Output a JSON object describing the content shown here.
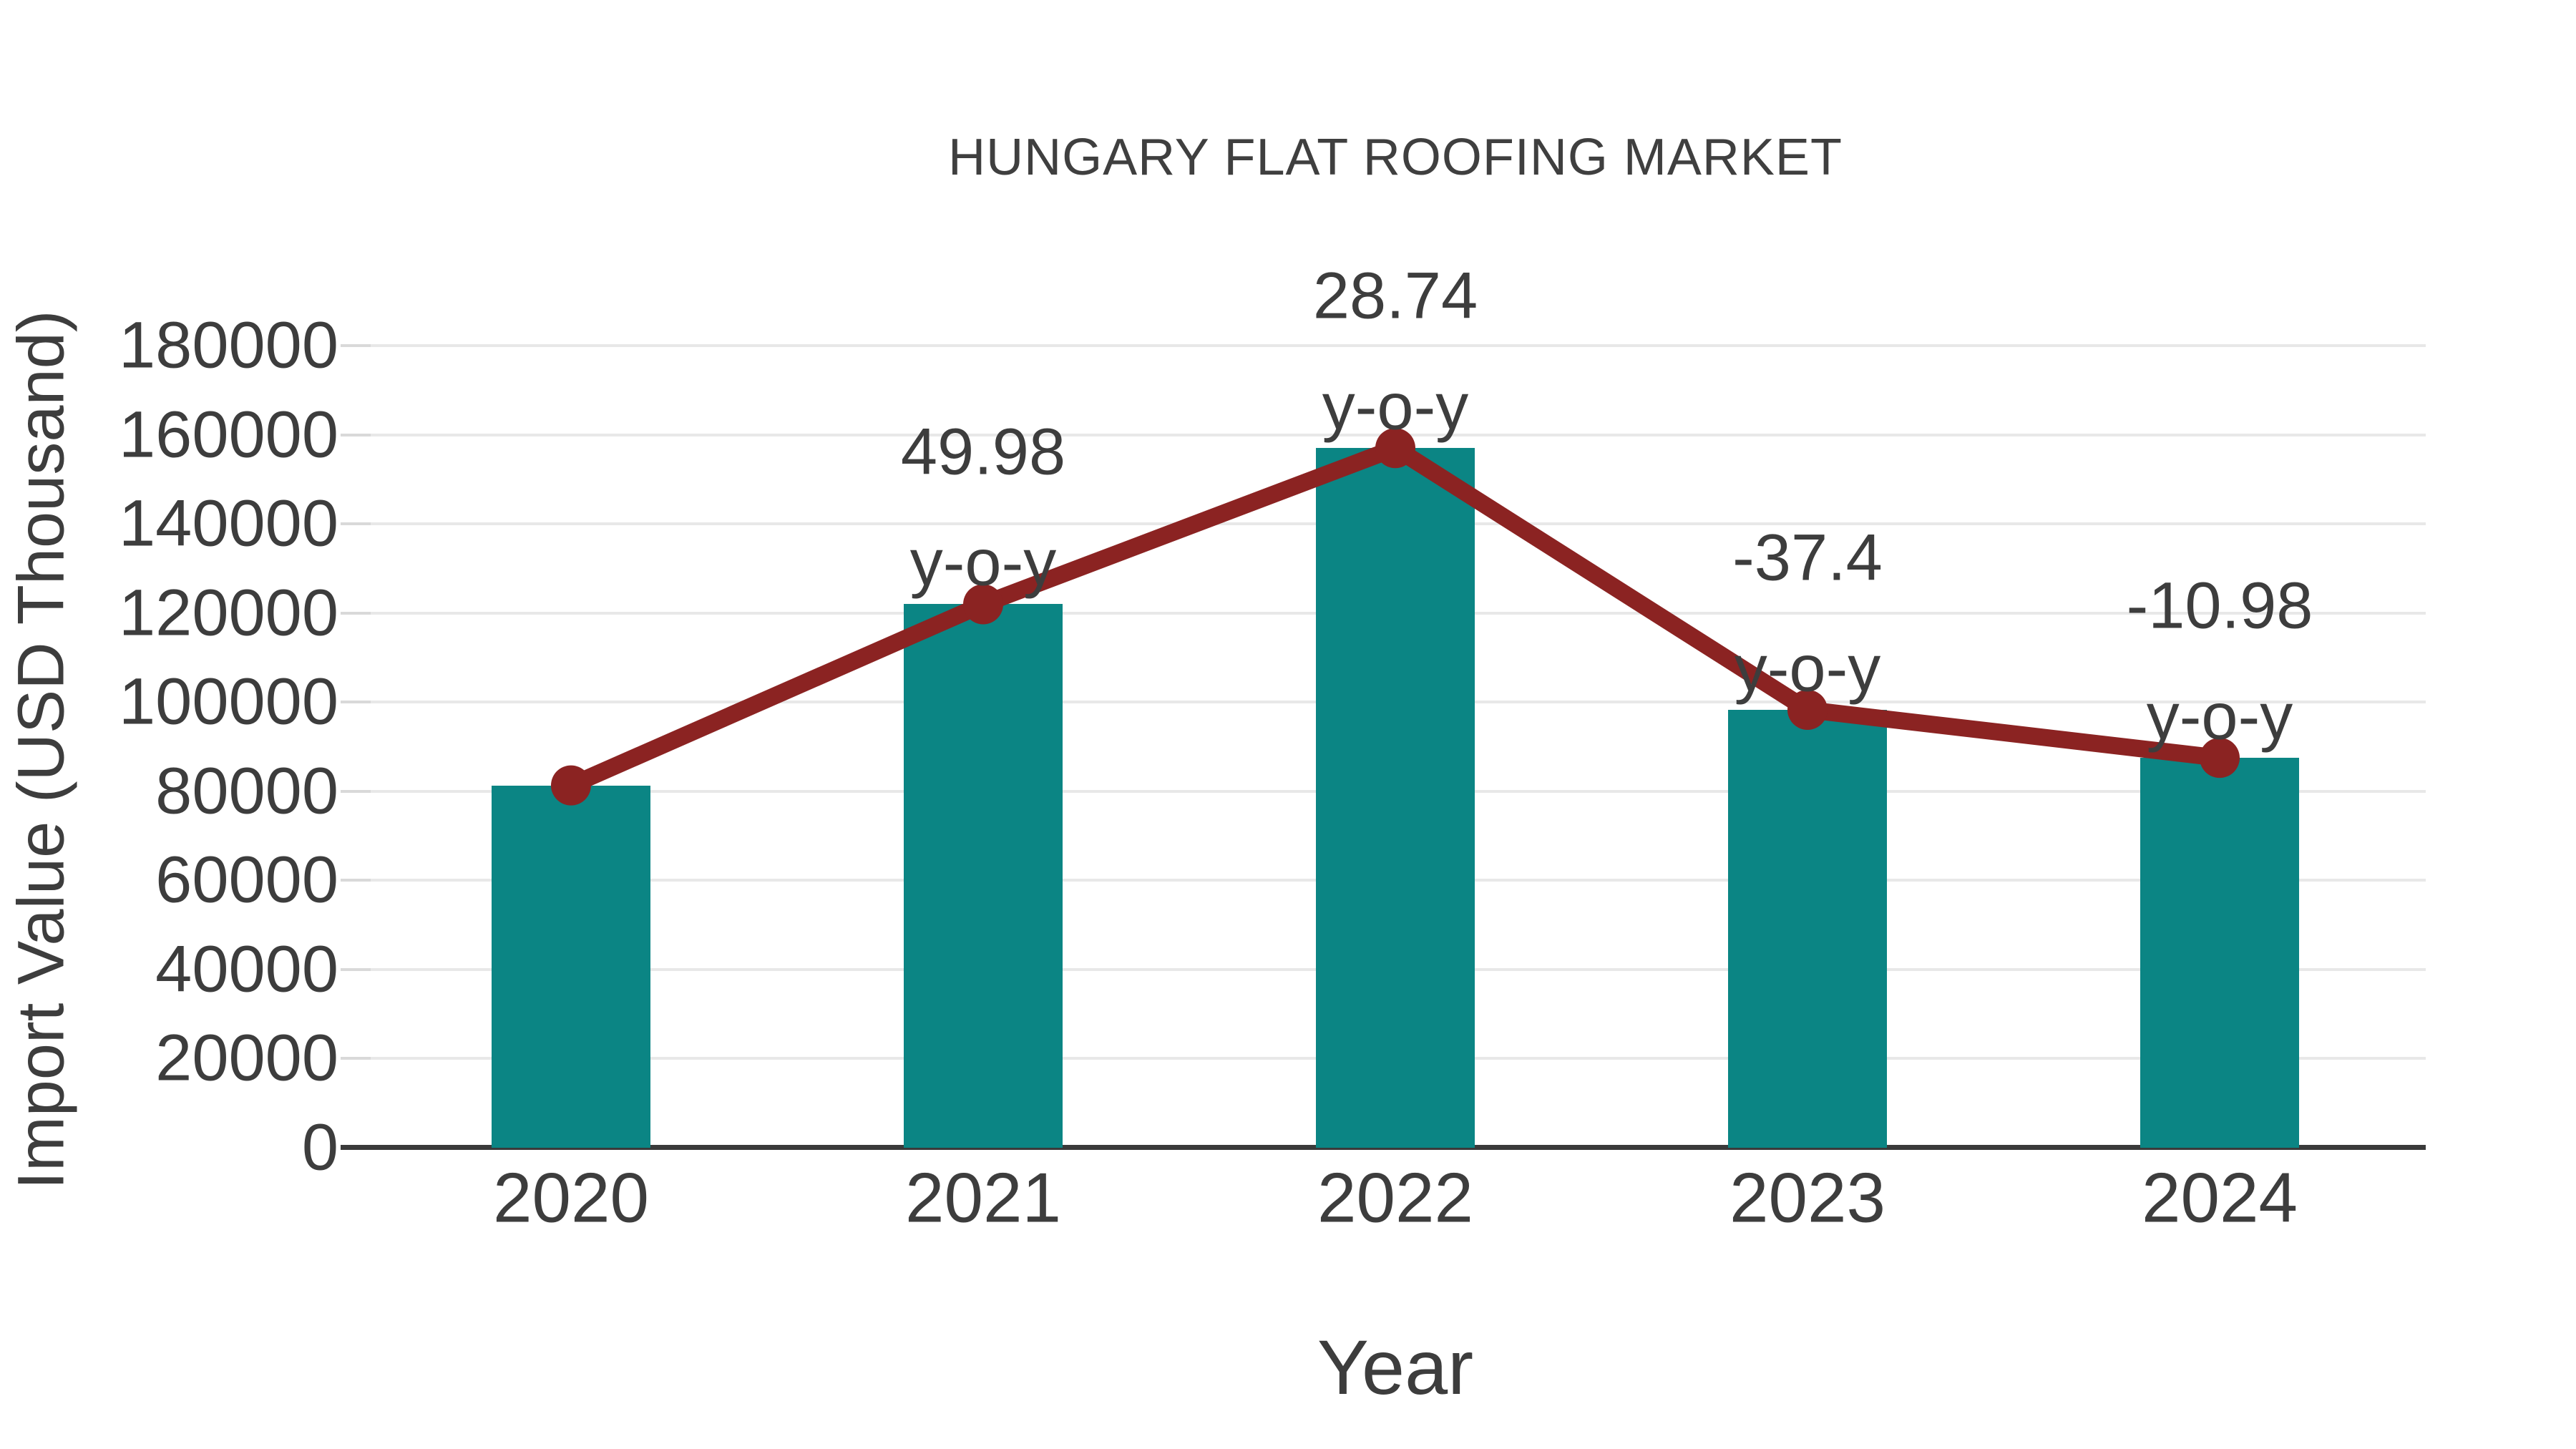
{
  "chart_data": {
    "type": "bar",
    "title": "HUNGARY FLAT ROOFING MARKET",
    "xlabel": "Year",
    "ylabel": "Import Value (USD Thousand)",
    "categories": [
      "2020",
      "2021",
      "2022",
      "2023",
      "2024"
    ],
    "series": [
      {
        "name": "Import Value (USD Thousand)",
        "type": "bar",
        "values": [
          81350,
          122010,
          157070,
          98320,
          87520
        ]
      },
      {
        "name": "y-o-y growth markers",
        "type": "line",
        "values": [
          81350,
          122010,
          157070,
          98320,
          87520
        ]
      }
    ],
    "annotations": {
      "sub_label": "y-o-y",
      "yoy_values": [
        null,
        "49.98",
        "28.74",
        "-37.4",
        "-10.98"
      ]
    },
    "y_ticks": [
      0,
      20000,
      40000,
      60000,
      80000,
      100000,
      120000,
      140000,
      160000,
      180000
    ],
    "ylim": [
      0,
      191000
    ],
    "grid": true,
    "legend_position": "none",
    "colors": {
      "bar": "#0b8584",
      "line": "#8b2322",
      "grid": "#e8e8e8",
      "axis": "#3a3a3a",
      "text": "#3d3d3d"
    }
  }
}
